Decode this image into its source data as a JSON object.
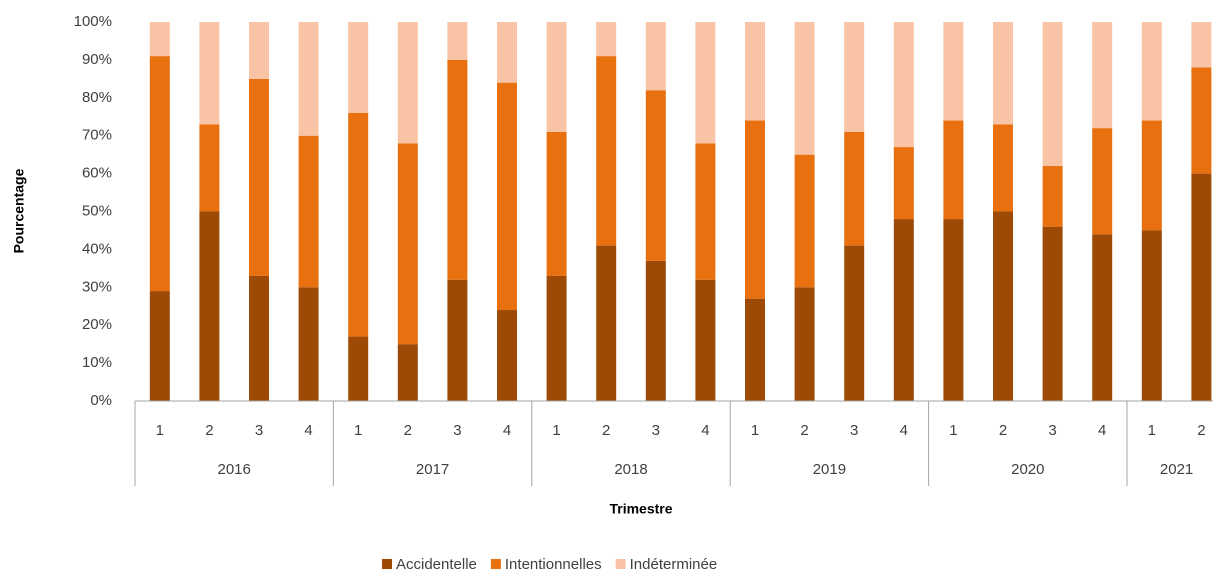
{
  "chart_data": {
    "type": "stacked_bar",
    "x_label": "Trimestre",
    "y_label": "Pourcentage",
    "groups": [
      {
        "label": "2016",
        "categories": [
          "1",
          "2",
          "3",
          "4"
        ]
      },
      {
        "label": "2017",
        "categories": [
          "1",
          "2",
          "3",
          "4"
        ]
      },
      {
        "label": "2018",
        "categories": [
          "1",
          "2",
          "3",
          "4"
        ]
      },
      {
        "label": "2019",
        "categories": [
          "1",
          "2",
          "3",
          "4"
        ]
      },
      {
        "label": "2020",
        "categories": [
          "1",
          "2",
          "3",
          "4"
        ]
      },
      {
        "label": "2021",
        "categories": [
          "1",
          "2"
        ]
      }
    ],
    "series": [
      {
        "name": "Accidentelle",
        "color": "#9c4a06",
        "values": [
          29,
          50,
          33,
          30,
          17,
          15,
          32,
          24,
          33,
          41,
          37,
          32,
          27,
          30,
          41,
          48,
          48,
          50,
          46,
          44,
          45,
          60
        ]
      },
      {
        "name": "Intentionnelles",
        "color": "#e8700e",
        "values": [
          62,
          23,
          52,
          40,
          59,
          53,
          58,
          60,
          38,
          50,
          45,
          36,
          47,
          35,
          30,
          19,
          26,
          23,
          16,
          28,
          29,
          28
        ]
      },
      {
        "name": "Indéterminée",
        "color": "#f9c4a5",
        "values": [
          9,
          27,
          15,
          30,
          24,
          32,
          10,
          16,
          29,
          9,
          18,
          32,
          26,
          35,
          29,
          33,
          26,
          27,
          38,
          28,
          26,
          12
        ]
      }
    ],
    "ylim": [
      0,
      100
    ],
    "yticks": [
      {
        "value": 0,
        "label": "0%"
      },
      {
        "value": 10,
        "label": "10%"
      },
      {
        "value": 20,
        "label": "20%"
      },
      {
        "value": 30,
        "label": "30%"
      },
      {
        "value": 40,
        "label": "40%"
      },
      {
        "value": 50,
        "label": "50%"
      },
      {
        "value": 60,
        "label": "60%"
      },
      {
        "value": 70,
        "label": "70%"
      },
      {
        "value": 80,
        "label": "80%"
      },
      {
        "value": 90,
        "label": "90%"
      },
      {
        "value": 100,
        "label": "100%"
      }
    ],
    "grid": false,
    "legend": "bottom"
  }
}
